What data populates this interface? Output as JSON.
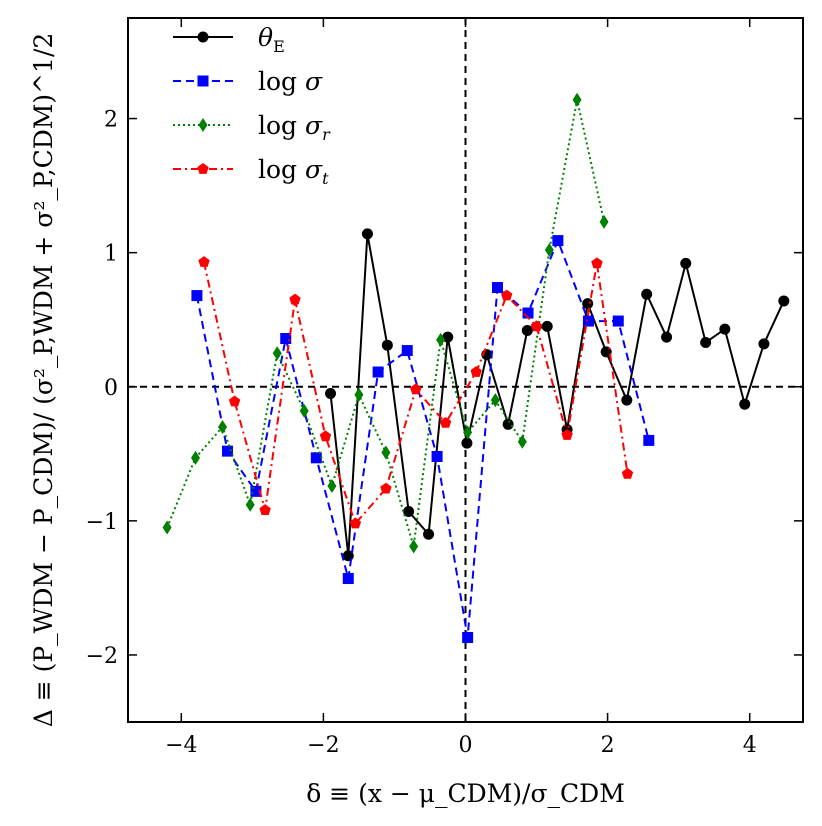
{
  "chart_data": {
    "type": "line",
    "title": "",
    "xlabel": "δ ≡ (x − μ_CDM)/σ_CDM",
    "ylabel": "Δ ≡ (P_WDM − P_CDM)/ (σ²_P,WDM + σ²_P,CDM)^1/2",
    "xlim": [
      -4.75,
      4.75
    ],
    "ylim": [
      -2.5,
      2.75
    ],
    "xticks": [
      -4,
      -2,
      0,
      2,
      4
    ],
    "yticks": [
      -2,
      -1,
      0,
      1,
      2
    ],
    "xtick_labels": [
      "−4",
      "−2",
      "0",
      "2",
      "4"
    ],
    "ytick_labels": [
      "−2",
      "−1",
      "0",
      "1",
      "2"
    ],
    "reference_lines": {
      "horizontal_y": 0,
      "vertical_x": 0,
      "style": "dashed"
    },
    "legend_position": "top-left",
    "series": [
      {
        "name": "θ_E",
        "color": "#000000",
        "marker": "circle",
        "line_style": "solid",
        "x": [
          -1.9,
          -1.65,
          -1.38,
          -1.1,
          -0.8,
          -0.52,
          -0.25,
          0.02,
          0.3,
          0.6,
          0.87,
          1.15,
          1.43,
          1.72,
          1.98,
          2.27,
          2.55,
          2.83,
          3.1,
          3.38,
          3.65,
          3.93,
          4.2,
          4.48
        ],
        "y": [
          -0.05,
          -1.26,
          1.14,
          0.31,
          -0.93,
          -1.1,
          0.37,
          -0.42,
          0.24,
          -0.28,
          0.42,
          0.45,
          -0.32,
          0.62,
          0.26,
          -0.1,
          0.69,
          0.37,
          0.92,
          0.33,
          0.43,
          -0.13,
          0.32,
          0.64
        ]
      },
      {
        "name": "log σ",
        "color": "#0000ff",
        "marker": "square",
        "line_style": "dashed",
        "x": [
          -3.78,
          -3.35,
          -2.95,
          -2.53,
          -2.1,
          -1.65,
          -1.23,
          -0.82,
          -0.4,
          0.03,
          0.45,
          0.88,
          1.3,
          1.73,
          2.15,
          2.58
        ],
        "y": [
          0.68,
          -0.48,
          -0.78,
          0.36,
          -0.53,
          -1.43,
          0.11,
          0.27,
          -0.52,
          -1.87,
          0.74,
          0.55,
          1.09,
          0.49,
          0.49,
          -0.4
        ]
      },
      {
        "name": "log σ_r",
        "color": "#008000",
        "marker": "diamond",
        "line_style": "dotted",
        "x": [
          -4.2,
          -3.8,
          -3.42,
          -3.03,
          -2.65,
          -2.27,
          -1.88,
          -1.5,
          -1.12,
          -0.73,
          -0.35,
          0.03,
          0.42,
          0.8,
          1.18,
          1.57,
          1.95
        ],
        "y": [
          -1.05,
          -0.53,
          -0.3,
          -0.88,
          0.25,
          -0.18,
          -0.74,
          -0.06,
          -0.49,
          -1.19,
          0.35,
          -0.34,
          -0.1,
          -0.41,
          1.02,
          2.14,
          1.23
        ]
      },
      {
        "name": "log σ_t",
        "color": "#ff0000",
        "marker": "pentagon",
        "line_style": "dashdot",
        "x": [
          -3.68,
          -3.25,
          -2.82,
          -2.4,
          -1.97,
          -1.55,
          -1.12,
          -0.7,
          -0.28,
          0.15,
          0.58,
          1.0,
          1.43,
          1.85,
          2.28
        ],
        "y": [
          0.93,
          -0.11,
          -0.92,
          0.65,
          -0.37,
          -1.02,
          -0.76,
          -0.02,
          -0.27,
          0.11,
          0.68,
          0.45,
          -0.36,
          0.92,
          -0.65
        ]
      }
    ]
  }
}
